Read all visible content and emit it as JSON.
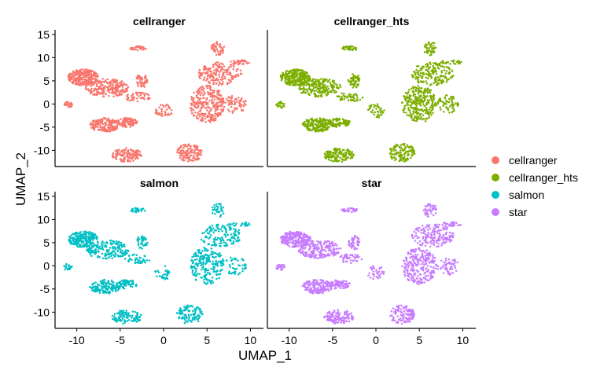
{
  "chart_data": {
    "type": "scatter",
    "xlabel": "UMAP_1",
    "ylabel": "UMAP_2",
    "xlim": [
      -12.5,
      11.5
    ],
    "ylim": [
      -13.5,
      16
    ],
    "x_ticks": [
      -10,
      -5,
      0,
      5,
      10
    ],
    "y_ticks": [
      -10,
      -5,
      0,
      5,
      10,
      15
    ],
    "x_tick_labels": [
      "-10",
      "-5",
      "0",
      "5",
      "10"
    ],
    "y_tick_labels": [
      "-10",
      "-5",
      "0",
      "5",
      "10",
      "15"
    ],
    "grid": false,
    "legend_position": "right",
    "legend": [
      {
        "label": "cellranger",
        "color": "#F8766D"
      },
      {
        "label": "cellranger_hts",
        "color": "#7CAE00"
      },
      {
        "label": "salmon",
        "color": "#00BFC4"
      },
      {
        "label": "star",
        "color": "#C77CFF"
      }
    ],
    "panels": [
      {
        "title": "cellranger",
        "color": "#F8766D",
        "variant": "cellranger"
      },
      {
        "title": "cellranger_hts",
        "color": "#7CAE00",
        "variant": "cellranger"
      },
      {
        "title": "salmon",
        "color": "#00BFC4",
        "variant": "salmon"
      },
      {
        "title": "star",
        "color": "#C77CFF",
        "variant": "star"
      }
    ],
    "clusters": [
      {
        "x": [
          -11,
          -7.5
        ],
        "y": [
          4,
          7.5
        ],
        "n": 260
      },
      {
        "x": [
          -9,
          -4
        ],
        "y": [
          1.5,
          5.5
        ],
        "n": 220
      },
      {
        "x": [
          -4.5,
          -1.5
        ],
        "y": [
          0.5,
          2.5
        ],
        "n": 50
      },
      {
        "x": [
          -3.2,
          -1.8
        ],
        "y": [
          3.5,
          6.5
        ],
        "n": 50
      },
      {
        "x": [
          -8.5,
          -5
        ],
        "y": [
          -6,
          -3
        ],
        "n": 170
      },
      {
        "x": [
          -5.5,
          -3
        ],
        "y": [
          -5,
          -3
        ],
        "n": 90
      },
      {
        "x": [
          -6,
          -2.5
        ],
        "y": [
          -12.5,
          -9.5
        ],
        "n": 130
      },
      {
        "x": [
          -11.5,
          -10.5
        ],
        "y": [
          -1,
          0.5
        ],
        "n": 25
      },
      {
        "x": [
          -4,
          -2
        ],
        "y": [
          11.5,
          12.5
        ],
        "n": 35
      },
      {
        "x": [
          5.5,
          7
        ],
        "y": [
          10.5,
          13.5
        ],
        "n": 45
      },
      {
        "x": [
          4,
          9
        ],
        "y": [
          4,
          9
        ],
        "n": 180
      },
      {
        "x": [
          3,
          7
        ],
        "y": [
          -4,
          4
        ],
        "n": 280
      },
      {
        "x": [
          7.5,
          10
        ],
        "y": [
          8.5,
          9.5
        ],
        "n": 30
      },
      {
        "x": [
          1.5,
          4.5
        ],
        "y": [
          -12.5,
          -8.5
        ],
        "n": 130
      },
      {
        "x": [
          7,
          9.5
        ],
        "y": [
          -2,
          2
        ],
        "n": 60
      },
      {
        "x": [
          -1,
          1
        ],
        "y": [
          -3,
          0
        ],
        "n": 40
      }
    ]
  }
}
